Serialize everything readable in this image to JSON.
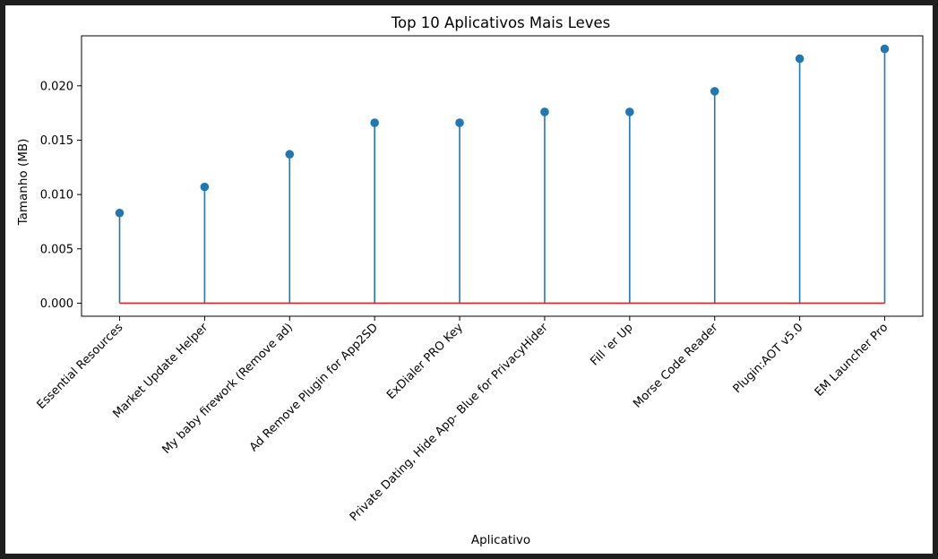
{
  "chart_data": {
    "type": "stem",
    "title": "Top 10 Aplicativos Mais Leves",
    "xlabel": "Aplicativo",
    "ylabel": "Tamanho (MB)",
    "categories": [
      "Essential Resources",
      "Market Update Helper",
      "My baby firework (Remove ad)",
      "Ad Remove Plugin for App2SD",
      "ExDialer PRO Key",
      "Private Dating, Hide App- Blue for PrivacyHider",
      "Fill 'er Up",
      "Morse Code Reader",
      "Plugin:AOT v5.0",
      "EM Launcher Pro"
    ],
    "values": [
      0.0083,
      0.0107,
      0.0137,
      0.0166,
      0.0166,
      0.0176,
      0.0176,
      0.0195,
      0.0225,
      0.0234
    ],
    "ylim": [
      -0.0012,
      0.0246
    ],
    "yticks": [
      0.0,
      0.005,
      0.01,
      0.015,
      0.02
    ],
    "ytick_labels": [
      "0.000",
      "0.005",
      "0.010",
      "0.015",
      "0.020"
    ],
    "grid": false,
    "legend": "none",
    "colors": {
      "stem": "#1f77b4",
      "marker": "#1f77b4",
      "baseline": "#d62728"
    }
  }
}
